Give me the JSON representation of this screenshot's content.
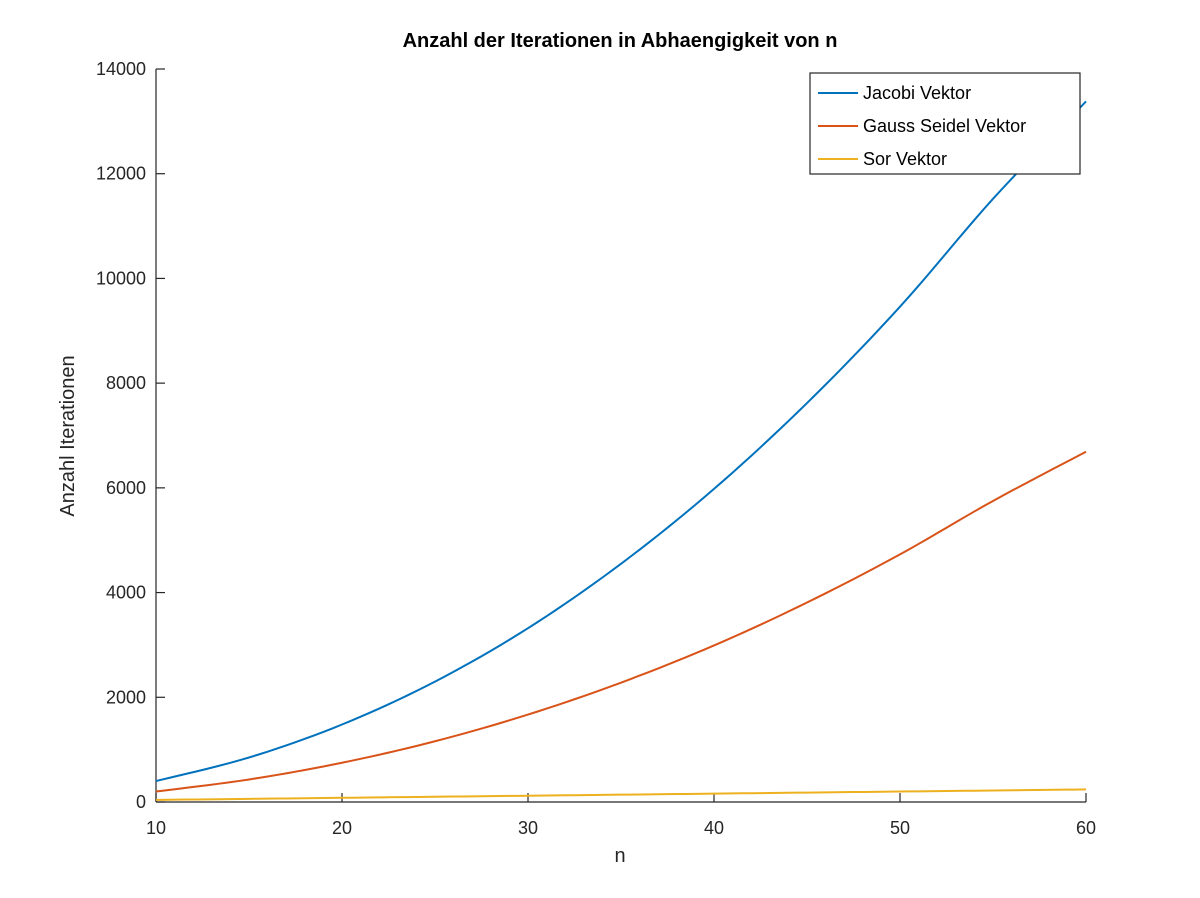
{
  "chart_data": {
    "type": "line",
    "title": "Anzahl der Iterationen in Abhaengigkeit von n",
    "xlabel": "n",
    "ylabel": "Anzahl Iterationen",
    "xlim": [
      10,
      60
    ],
    "ylim": [
      0,
      14000
    ],
    "xticks": [
      10,
      20,
      30,
      40,
      50,
      60
    ],
    "yticks": [
      0,
      2000,
      4000,
      6000,
      8000,
      10000,
      12000,
      14000
    ],
    "grid": false,
    "legend_position": "top-right",
    "x": [
      10,
      15,
      20,
      25,
      30,
      35,
      40,
      45,
      50,
      55,
      60
    ],
    "series": [
      {
        "name": "Jacobi Vektor",
        "color": "#0072bd",
        "values": [
          400,
          850,
          1480,
          2300,
          3320,
          4550,
          5980,
          7620,
          9460,
          11520,
          13380
        ]
      },
      {
        "name": "Gauss Seidel Vektor",
        "color": "#d95319",
        "values": [
          200,
          430,
          750,
          1160,
          1670,
          2280,
          2990,
          3810,
          4730,
          5750,
          6690
        ]
      },
      {
        "name": "Sor Vektor",
        "color": "#edb120",
        "values": [
          40,
          60,
          80,
          100,
          120,
          140,
          160,
          180,
          200,
          220,
          240
        ]
      }
    ]
  }
}
